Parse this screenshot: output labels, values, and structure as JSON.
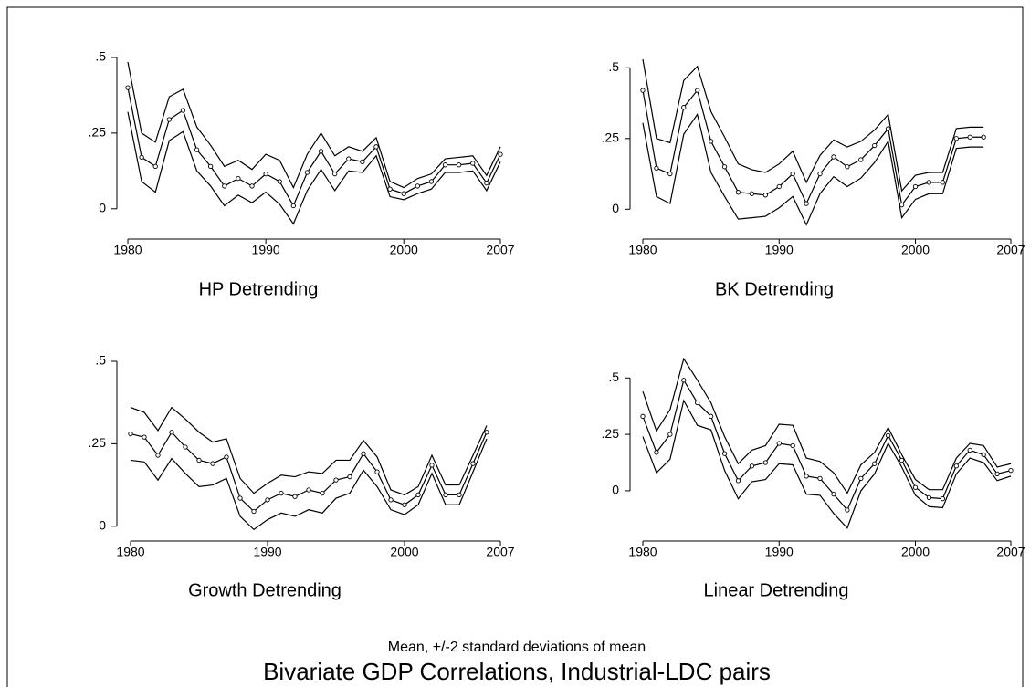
{
  "chart_data": [
    {
      "type": "line",
      "title": "HP Detrending",
      "x": [
        1980,
        1981,
        1982,
        1983,
        1984,
        1985,
        1986,
        1987,
        1988,
        1989,
        1990,
        1991,
        1992,
        1993,
        1994,
        1995,
        1996,
        1997,
        1998,
        1999,
        2000,
        2001,
        2002,
        2003,
        2004,
        2005,
        2006,
        2007
      ],
      "series": [
        {
          "color": "#000000",
          "markers": true,
          "values": [
            0.4,
            0.17,
            0.14,
            0.295,
            0.325,
            0.195,
            0.14,
            0.075,
            0.1,
            0.075,
            0.115,
            0.09,
            0.01,
            0.12,
            0.19,
            0.115,
            0.165,
            0.155,
            0.205,
            0.065,
            0.05,
            0.075,
            0.09,
            0.145,
            0.145,
            0.15,
            0.085,
            0.18
          ]
        },
        {
          "color": "#000000",
          "markers": false,
          "values": [
            0.485,
            0.25,
            0.22,
            0.37,
            0.395,
            0.27,
            0.21,
            0.14,
            0.16,
            0.13,
            0.18,
            0.16,
            0.07,
            0.18,
            0.25,
            0.175,
            0.205,
            0.19,
            0.235,
            0.09,
            0.07,
            0.1,
            0.115,
            0.165,
            0.17,
            0.175,
            0.11,
            0.205
          ]
        },
        {
          "color": "#000000",
          "markers": false,
          "values": [
            0.32,
            0.09,
            0.055,
            0.225,
            0.255,
            0.125,
            0.075,
            0.01,
            0.045,
            0.02,
            0.055,
            0.015,
            -0.05,
            0.06,
            0.13,
            0.06,
            0.125,
            0.12,
            0.175,
            0.04,
            0.03,
            0.05,
            0.065,
            0.12,
            0.12,
            0.125,
            0.06,
            0.155
          ]
        }
      ],
      "xlim": [
        1980,
        2007
      ],
      "xticks": [
        1980,
        1990,
        2000,
        2007
      ],
      "ylim": [
        -0.07,
        0.5
      ],
      "yticks": [
        {
          "value": 0.5,
          "label": ".5"
        },
        {
          "value": 0.25,
          "label": ".25"
        },
        0
      ],
      "grid": false
    },
    {
      "type": "line",
      "title": "BK Detrending",
      "x": [
        1980,
        1981,
        1982,
        1983,
        1984,
        1985,
        1986,
        1987,
        1988,
        1989,
        1990,
        1991,
        1992,
        1993,
        1994,
        1995,
        1996,
        1997,
        1998,
        1999,
        2000,
        2001,
        2002,
        2003,
        2004,
        2005,
        2006,
        2007
      ],
      "series": [
        {
          "color": "#000000",
          "markers": true,
          "values": [
            0.42,
            0.145,
            0.125,
            0.36,
            0.42,
            0.24,
            0.15,
            0.06,
            0.055,
            0.05,
            0.08,
            0.125,
            0.02,
            0.125,
            0.185,
            0.15,
            0.175,
            0.225,
            0.285,
            0.015,
            0.08,
            0.095,
            0.095,
            0.25,
            0.255,
            0.255,
            null,
            null
          ]
        },
        {
          "color": "#000000",
          "markers": false,
          "values": [
            0.53,
            0.25,
            0.235,
            0.455,
            0.505,
            0.345,
            0.255,
            0.16,
            0.14,
            0.13,
            0.16,
            0.205,
            0.095,
            0.19,
            0.245,
            0.22,
            0.24,
            0.28,
            0.335,
            0.065,
            0.12,
            0.13,
            0.13,
            0.285,
            0.29,
            0.29,
            null,
            null
          ]
        },
        {
          "color": "#000000",
          "markers": false,
          "values": [
            0.305,
            0.045,
            0.02,
            0.265,
            0.335,
            0.13,
            0.045,
            -0.035,
            -0.03,
            -0.025,
            0.005,
            0.045,
            -0.055,
            0.055,
            0.115,
            0.08,
            0.11,
            0.165,
            0.24,
            -0.03,
            0.035,
            0.055,
            0.055,
            0.215,
            0.22,
            0.22,
            null,
            null
          ]
        }
      ],
      "xlim": [
        1980,
        2007
      ],
      "xticks": [
        1980,
        1990,
        2000,
        2007
      ],
      "ylim": [
        -0.07,
        0.53
      ],
      "yticks": [
        {
          "value": 0.5,
          "label": ".5"
        },
        {
          "value": 0.25,
          "label": ".25"
        },
        0
      ],
      "grid": false
    },
    {
      "type": "line",
      "title": "Growth Detrending",
      "x": [
        1980,
        1981,
        1982,
        1983,
        1984,
        1985,
        1986,
        1987,
        1988,
        1989,
        1990,
        1991,
        1992,
        1993,
        1994,
        1995,
        1996,
        1997,
        1998,
        1999,
        2000,
        2001,
        2002,
        2003,
        2004,
        2005,
        2006,
        2007
      ],
      "series": [
        {
          "color": "#000000",
          "markers": true,
          "values": [
            0.28,
            0.27,
            0.215,
            0.285,
            0.24,
            0.2,
            0.19,
            0.21,
            0.085,
            0.045,
            0.08,
            0.1,
            0.09,
            0.11,
            0.1,
            0.14,
            0.15,
            0.22,
            0.165,
            0.08,
            0.065,
            0.095,
            0.185,
            0.095,
            0.095,
            0.19,
            0.285,
            null
          ]
        },
        {
          "color": "#000000",
          "markers": false,
          "values": [
            0.36,
            0.345,
            0.29,
            0.36,
            0.325,
            0.285,
            0.255,
            0.265,
            0.145,
            0.1,
            0.13,
            0.155,
            0.15,
            0.165,
            0.16,
            0.2,
            0.2,
            0.26,
            0.21,
            0.11,
            0.095,
            0.12,
            0.215,
            0.125,
            0.125,
            0.215,
            0.305,
            null
          ]
        },
        {
          "color": "#000000",
          "markers": false,
          "values": [
            0.2,
            0.195,
            0.14,
            0.205,
            0.16,
            0.12,
            0.125,
            0.145,
            0.03,
            -0.01,
            0.02,
            0.04,
            0.03,
            0.05,
            0.04,
            0.085,
            0.1,
            0.17,
            0.12,
            0.05,
            0.035,
            0.065,
            0.16,
            0.065,
            0.065,
            0.165,
            0.265,
            null
          ]
        }
      ],
      "xlim": [
        1980,
        2007
      ],
      "xticks": [
        1980,
        1990,
        2000,
        2007
      ],
      "ylim": [
        -0.02,
        0.5
      ],
      "yticks": [
        {
          "value": 0.5,
          "label": ".5"
        },
        {
          "value": 0.25,
          "label": ".25"
        },
        0
      ],
      "grid": false
    },
    {
      "type": "line",
      "title": "Linear Detrending",
      "x": [
        1980,
        1981,
        1982,
        1983,
        1984,
        1985,
        1986,
        1987,
        1988,
        1989,
        1990,
        1991,
        1992,
        1993,
        1994,
        1995,
        1996,
        1997,
        1998,
        1999,
        2000,
        2001,
        2002,
        2003,
        2004,
        2005,
        2006,
        2007
      ],
      "series": [
        {
          "color": "#000000",
          "markers": true,
          "values": [
            0.33,
            0.17,
            0.25,
            0.49,
            0.39,
            0.33,
            0.165,
            0.045,
            0.11,
            0.125,
            0.21,
            0.2,
            0.065,
            0.055,
            -0.015,
            -0.085,
            0.055,
            0.12,
            0.245,
            0.135,
            0.015,
            -0.03,
            -0.035,
            0.11,
            0.18,
            0.16,
            0.075,
            0.09
          ]
        },
        {
          "color": "#000000",
          "markers": false,
          "values": [
            0.44,
            0.265,
            0.36,
            0.585,
            0.49,
            0.39,
            0.24,
            0.12,
            0.18,
            0.2,
            0.295,
            0.29,
            0.145,
            0.13,
            0.08,
            -0.01,
            0.115,
            0.17,
            0.28,
            0.16,
            0.05,
            0.005,
            0.005,
            0.145,
            0.21,
            0.2,
            0.105,
            0.12
          ]
        },
        {
          "color": "#000000",
          "markers": false,
          "values": [
            0.24,
            0.08,
            0.14,
            0.4,
            0.29,
            0.27,
            0.09,
            -0.035,
            0.04,
            0.05,
            0.12,
            0.115,
            -0.015,
            -0.02,
            -0.1,
            -0.165,
            0,
            0.075,
            0.21,
            0.105,
            -0.02,
            -0.07,
            -0.075,
            0.075,
            0.145,
            0.125,
            0.045,
            0.065
          ]
        }
      ],
      "xlim": [
        1980,
        2007
      ],
      "xticks": [
        1980,
        1990,
        2000,
        2007
      ],
      "ylim": [
        -0.17,
        0.59
      ],
      "yticks": [
        {
          "value": 0.5,
          "label": ".5"
        },
        {
          "value": 0.25,
          "label": ".25"
        },
        0
      ],
      "grid": false
    }
  ],
  "note": "Mean, +/-2 standard deviations of mean",
  "title": "Bivariate GDP Correlations, Industrial-LDC pairs"
}
